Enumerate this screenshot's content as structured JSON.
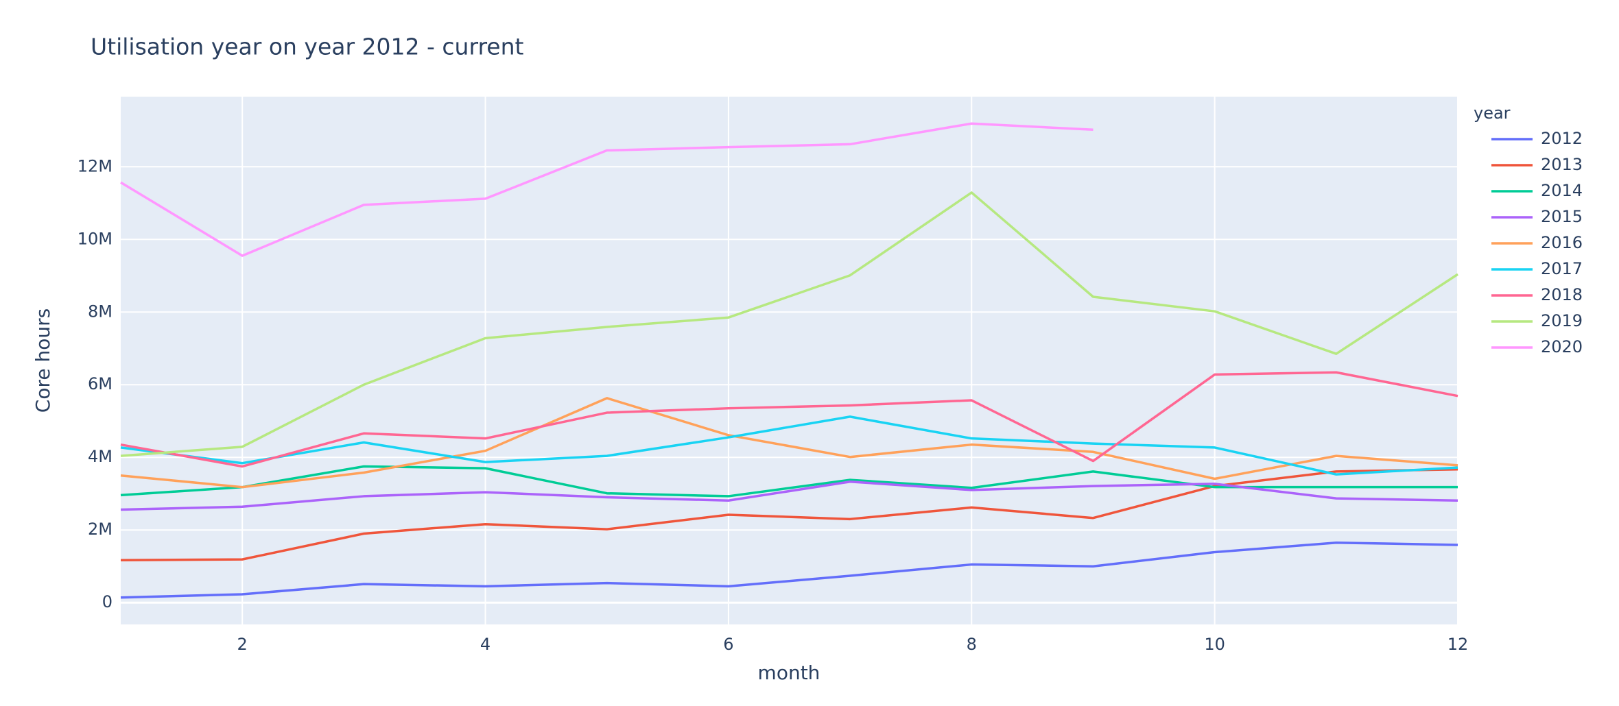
{
  "chart_data": {
    "type": "line",
    "title": "Utilisation year on year 2012 - current",
    "x_label": "month",
    "y_label": "Core hours",
    "legend_title": "year",
    "x": [
      1,
      2,
      3,
      4,
      5,
      6,
      7,
      8,
      9,
      10,
      11,
      12
    ],
    "xlim": [
      1,
      12
    ],
    "xticks": [
      2,
      4,
      6,
      8,
      10,
      12
    ],
    "ylim": [
      -600000,
      13930000
    ],
    "yticks": [
      0,
      {
        "value": 2000000,
        "label": "2M"
      },
      {
        "value": 4000000,
        "label": "4M"
      },
      {
        "value": 6000000,
        "label": "6M"
      },
      {
        "value": 8000000,
        "label": "8M"
      },
      {
        "value": 10000000,
        "label": "10M"
      },
      {
        "value": 12000000,
        "label": "12M"
      }
    ],
    "grid": true,
    "legend": "right",
    "series": [
      {
        "name": "2012",
        "color": "#636efa",
        "values": [
          140000,
          230000,
          510000,
          450000,
          540000,
          450000,
          740000,
          1050000,
          1000000,
          1390000,
          1650000,
          1590000
        ]
      },
      {
        "name": "2013",
        "color": "#EF553B",
        "values": [
          1170000,
          1190000,
          1900000,
          2160000,
          2020000,
          2420000,
          2300000,
          2620000,
          2330000,
          3210000,
          3610000,
          3670000
        ]
      },
      {
        "name": "2014",
        "color": "#00cc96",
        "values": [
          2960000,
          3180000,
          3750000,
          3700000,
          3010000,
          2930000,
          3380000,
          3160000,
          3610000,
          3180000,
          3180000,
          3180000
        ]
      },
      {
        "name": "2015",
        "color": "#ab63fa",
        "values": [
          2560000,
          2640000,
          2930000,
          3040000,
          2900000,
          2810000,
          3330000,
          3100000,
          3210000,
          3270000,
          2870000,
          2810000
        ]
      },
      {
        "name": "2016",
        "color": "#FFA15A",
        "values": [
          3500000,
          3180000,
          3580000,
          4180000,
          5630000,
          4610000,
          4010000,
          4350000,
          4150000,
          3410000,
          4040000,
          3780000
        ]
      },
      {
        "name": "2017",
        "color": "#19d3f3",
        "values": [
          4270000,
          3840000,
          4410000,
          3870000,
          4040000,
          4550000,
          5120000,
          4520000,
          4380000,
          4270000,
          3530000,
          3720000
        ]
      },
      {
        "name": "2018",
        "color": "#FF6692",
        "values": [
          4350000,
          3750000,
          4660000,
          4520000,
          5230000,
          5350000,
          5430000,
          5570000,
          3900000,
          6280000,
          6340000,
          5690000
        ]
      },
      {
        "name": "2019",
        "color": "#B6E880",
        "values": [
          4040000,
          4290000,
          6000000,
          7280000,
          7590000,
          7850000,
          9010000,
          11290000,
          8420000,
          8020000,
          6850000,
          9040000
        ]
      },
      {
        "name": "2020",
        "color": "#FF97FF",
        "values": [
          11570000,
          9550000,
          10950000,
          11120000,
          12450000,
          12540000,
          12620000,
          13190000,
          13020000,
          null,
          null,
          null
        ]
      }
    ]
  }
}
